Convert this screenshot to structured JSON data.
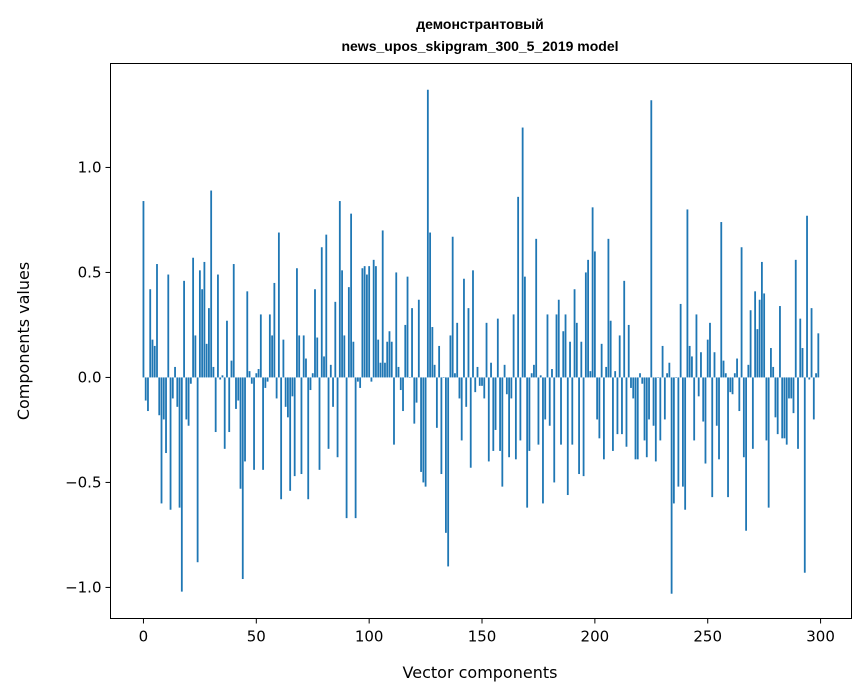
{
  "chart_data": {
    "type": "bar",
    "title_line1": "демонстрантовый",
    "title_line2": "news_upos_skipgram_300_5_2019 model",
    "xlabel": "Vector components",
    "ylabel": "Components values",
    "xlim": [
      -14.6,
      313.7
    ],
    "ylim": [
      -1.148,
      1.495
    ],
    "xticks": [
      0,
      50,
      100,
      150,
      200,
      250,
      300
    ],
    "xtick_labels": [
      "0",
      "50",
      "100",
      "150",
      "200",
      "250",
      "300"
    ],
    "yticks": [
      -1.0,
      -0.5,
      0.0,
      0.5,
      1.0
    ],
    "ytick_labels": [
      "−1.0",
      "−0.5",
      "0.0",
      "0.5",
      "1.0"
    ],
    "grid": false,
    "bar_color": "#1f77b4",
    "values": [
      0.84,
      -0.11,
      -0.16,
      0.42,
      0.18,
      0.15,
      0.54,
      -0.18,
      -0.6,
      -0.2,
      -0.36,
      0.49,
      -0.63,
      -0.1,
      0.05,
      -0.14,
      -0.62,
      -1.02,
      0.46,
      -0.2,
      -0.23,
      -0.03,
      0.57,
      0.2,
      -0.88,
      0.51,
      0.42,
      0.55,
      0.16,
      0.33,
      0.89,
      0.05,
      -0.26,
      0.49,
      -0.01,
      0.01,
      -0.34,
      0.27,
      -0.26,
      0.08,
      0.54,
      -0.15,
      -0.11,
      -0.53,
      -0.96,
      -0.4,
      0.41,
      0.03,
      -0.03,
      -0.44,
      0.02,
      0.04,
      0.3,
      -0.44,
      -0.05,
      -0.02,
      0.3,
      0.2,
      0.45,
      -0.1,
      0.69,
      -0.58,
      0.18,
      -0.14,
      -0.19,
      -0.54,
      -0.09,
      -0.47,
      0.52,
      0.2,
      -0.46,
      0.2,
      0.09,
      -0.58,
      -0.06,
      0.02,
      0.42,
      0.19,
      -0.44,
      0.62,
      0.1,
      0.68,
      -0.34,
      0.06,
      -0.14,
      0.36,
      -0.38,
      0.84,
      0.51,
      0.2,
      -0.67,
      0.43,
      0.78,
      0.17,
      -0.67,
      -0.02,
      -0.05,
      0.52,
      0.53,
      0.49,
      0.53,
      -0.02,
      0.56,
      0.53,
      0.18,
      0.07,
      0.7,
      0.07,
      0.17,
      0.22,
      0.17,
      -0.32,
      0.5,
      0.05,
      -0.06,
      -0.16,
      0.25,
      0.48,
      0.0,
      0.33,
      -0.22,
      -0.12,
      0.37,
      -0.45,
      -0.5,
      -0.52,
      1.37,
      0.69,
      0.24,
      0.06,
      -0.24,
      0.15,
      -0.46,
      0.0,
      -0.74,
      -0.9,
      0.2,
      0.67,
      0.02,
      0.26,
      -0.1,
      -0.3,
      0.47,
      -0.14,
      0.33,
      -0.43,
      0.51,
      -0.07,
      0.05,
      -0.04,
      -0.04,
      -0.1,
      0.26,
      -0.4,
      0.07,
      -0.35,
      -0.25,
      0.28,
      -0.35,
      -0.52,
      0.06,
      -0.08,
      -0.38,
      -0.1,
      0.3,
      -0.39,
      0.86,
      -0.3,
      1.19,
      0.48,
      -0.62,
      -0.35,
      0.02,
      0.06,
      0.66,
      -0.32,
      0.01,
      -0.6,
      -0.2,
      0.3,
      -0.23,
      0.04,
      -0.5,
      0.3,
      0.37,
      -0.32,
      0.22,
      0.3,
      -0.56,
      0.17,
      -0.32,
      0.42,
      0.26,
      -0.46,
      0.17,
      -0.47,
      0.5,
      0.56,
      0.03,
      0.81,
      0.6,
      -0.2,
      -0.29,
      0.16,
      -0.39,
      0.05,
      0.66,
      0.27,
      -0.35,
      0.03,
      -0.27,
      0.2,
      -0.27,
      0.46,
      -0.33,
      0.25,
      -0.05,
      -0.1,
      -0.39,
      -0.39,
      0.02,
      -0.03,
      -0.3,
      -0.38,
      -0.2,
      1.32,
      -0.23,
      -0.4,
      0.0,
      -0.3,
      0.15,
      -0.2,
      0.02,
      0.07,
      -1.03,
      -0.6,
      0.0,
      -0.52,
      0.35,
      -0.52,
      -0.63,
      0.8,
      0.15,
      0.1,
      -0.3,
      0.3,
      -0.09,
      0.12,
      -0.21,
      -0.41,
      0.18,
      0.26,
      -0.57,
      0.12,
      -0.23,
      -0.39,
      0.74,
      0.08,
      0.02,
      -0.57,
      -0.07,
      -0.08,
      0.02,
      0.09,
      -0.16,
      0.62,
      -0.38,
      -0.73,
      0.06,
      0.32,
      -0.34,
      0.41,
      0.23,
      0.37,
      0.55,
      0.4,
      -0.3,
      -0.62,
      0.14,
      0.05,
      -0.19,
      -0.27,
      0.34,
      -0.29,
      -0.29,
      -0.32,
      -0.1,
      -0.1,
      -0.17,
      0.56,
      -0.34,
      0.28,
      0.14,
      -0.93,
      0.77,
      -0.01,
      0.33,
      -0.2,
      0.02,
      0.21
    ]
  }
}
